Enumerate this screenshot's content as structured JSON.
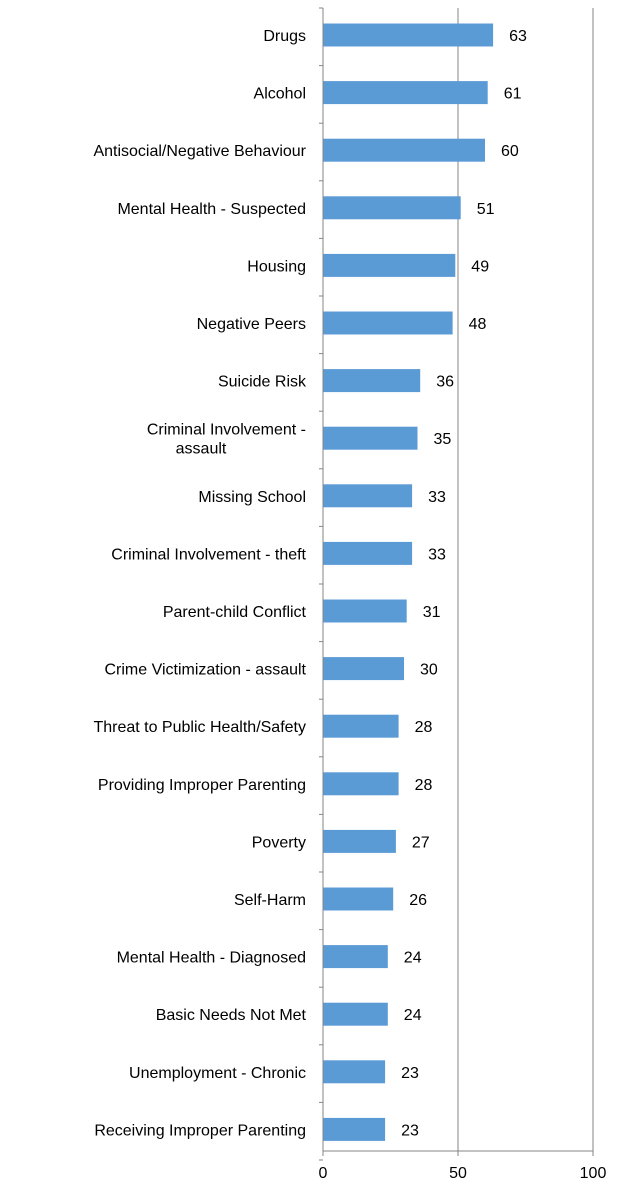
{
  "chart_data": {
    "type": "bar",
    "orientation": "horizontal",
    "categories": [
      "Drugs",
      "Alcohol",
      "Antisocial/Negative Behaviour",
      "Mental Health - Suspected",
      "Housing",
      "Negative Peers",
      "Suicide Risk",
      [
        "Criminal Involvement -",
        "assault"
      ],
      "Missing School",
      "Criminal Involvement - theft",
      "Parent-child Conflict",
      "Crime Victimization - assault",
      "Threat to Public Health/Safety",
      "Providing Improper Parenting",
      "Poverty",
      "Self-Harm",
      "Mental Health - Diagnosed",
      "Basic Needs Not Met",
      "Unemployment -  Chronic",
      "Receiving Improper Parenting"
    ],
    "values": [
      63,
      61,
      60,
      51,
      49,
      48,
      36,
      35,
      33,
      33,
      31,
      30,
      28,
      28,
      27,
      26,
      24,
      24,
      23,
      23
    ],
    "xlim": [
      0,
      100
    ],
    "xticks": [
      "0",
      "50",
      "100"
    ],
    "grid": "vertical major gridlines",
    "legend": "none",
    "bar_color": "#5b9bd5",
    "grid_color": "#868686"
  }
}
